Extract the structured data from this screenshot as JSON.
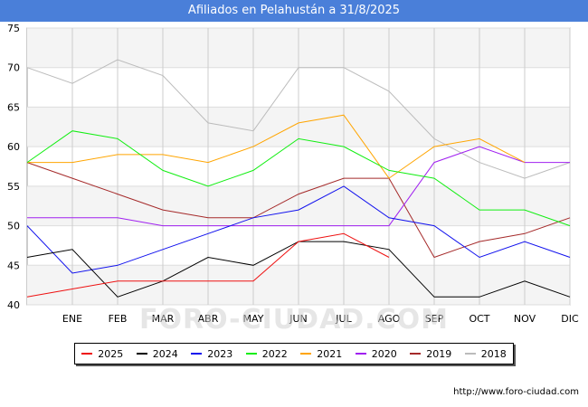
{
  "header": {
    "title": "Afiliados en Pelahustán a 31/8/2025"
  },
  "footer": {
    "source": "http://www.foro-ciudad.com",
    "watermark": "FORO-CIUDAD.COM"
  },
  "colors": {
    "title_bg": "#4a7fd9"
  },
  "chart_data": {
    "type": "line",
    "title": "Afiliados en Pelahustán a 31/8/2025",
    "xlabel": "",
    "ylabel": "",
    "grid": true,
    "legend_position": "bottom",
    "categories": [
      "",
      "ENE",
      "FEB",
      "MAR",
      "ABR",
      "MAY",
      "JUN",
      "JUL",
      "AGO",
      "SEP",
      "OCT",
      "NOV",
      "DIC"
    ],
    "ylim": [
      40,
      75
    ],
    "yticks": [
      40,
      45,
      50,
      55,
      60,
      65,
      70,
      75
    ],
    "series": [
      {
        "name": "2025",
        "color": "#ee1111",
        "values": [
          41,
          42,
          43,
          43,
          43,
          43,
          48,
          49,
          46,
          null,
          null,
          null,
          null
        ]
      },
      {
        "name": "2024",
        "color": "#000000",
        "values": [
          46,
          47,
          41,
          43,
          46,
          45,
          48,
          48,
          47,
          41,
          41,
          43,
          41
        ]
      },
      {
        "name": "2023",
        "color": "#1111ee",
        "values": [
          50,
          44,
          45,
          47,
          49,
          51,
          52,
          55,
          51,
          50,
          46,
          48,
          46
        ]
      },
      {
        "name": "2022",
        "color": "#11ee11",
        "values": [
          58,
          62,
          61,
          57,
          55,
          57,
          61,
          60,
          57,
          56,
          52,
          52,
          50
        ]
      },
      {
        "name": "2021",
        "color": "#ffa500",
        "values": [
          58,
          58,
          59,
          59,
          58,
          60,
          63,
          64,
          56,
          60,
          61,
          58,
          null
        ]
      },
      {
        "name": "2020",
        "color": "#a020f0",
        "values": [
          51,
          51,
          51,
          50,
          50,
          50,
          50,
          50,
          50,
          58,
          60,
          58,
          58
        ]
      },
      {
        "name": "2019",
        "color": "#a52a2a",
        "values": [
          58,
          56,
          54,
          52,
          51,
          51,
          54,
          56,
          56,
          46,
          48,
          49,
          51
        ]
      },
      {
        "name": "2018",
        "color": "#bbbbbb",
        "values": [
          70,
          68,
          71,
          69,
          63,
          62,
          70,
          70,
          67,
          61,
          58,
          56,
          58
        ]
      }
    ]
  }
}
